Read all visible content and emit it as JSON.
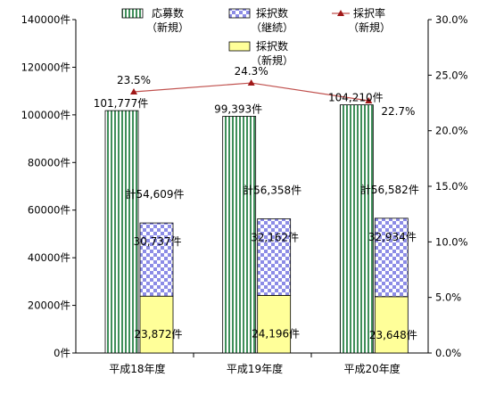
{
  "chart_data": {
    "type": "bar",
    "categories": [
      "平成18年度",
      "平成19年度",
      "平成20年度"
    ],
    "left_axis": {
      "ylim": [
        0,
        140000
      ],
      "ticks": [
        0,
        20000,
        40000,
        60000,
        80000,
        100000,
        120000,
        140000
      ],
      "tick_labels": [
        "0件",
        "20000件",
        "40000件",
        "60000件",
        "80000件",
        "100000件",
        "120000件",
        "140000件"
      ]
    },
    "right_axis": {
      "ylim": [
        0,
        30
      ],
      "ticks": [
        0,
        5,
        10,
        15,
        20,
        25,
        30
      ],
      "tick_labels": [
        "0.0%",
        "5.0%",
        "10.0%",
        "15.0%",
        "20.0%",
        "25.0%",
        "30.0%"
      ]
    },
    "series": [
      {
        "name": [
          "応募数",
          "（新規）"
        ],
        "kind": "bar",
        "pattern": "vertical-stripes",
        "color": "#3f8f5a",
        "values": [
          101777,
          99393,
          104210
        ],
        "labels": [
          "101,777件",
          "99,393件",
          "104,210件"
        ]
      },
      {
        "name": [
          "採択数",
          "（継続）"
        ],
        "kind": "stacked-bar-top",
        "pattern": "checker",
        "color": "#8c8ce6",
        "values": [
          30737,
          32162,
          32934
        ],
        "labels": [
          "30,737件",
          "32,162件",
          "32,934件"
        ]
      },
      {
        "name": [
          "採択数",
          "（新規）"
        ],
        "kind": "stacked-bar-bottom",
        "color": "#ffff99",
        "values": [
          23872,
          24196,
          23648
        ],
        "labels": [
          "23,872件",
          "24,196件",
          "23,648件"
        ]
      },
      {
        "name": [
          "採択率",
          "（新規）"
        ],
        "kind": "line",
        "axis": "right",
        "color": "#c0504d",
        "values": [
          23.5,
          24.3,
          22.7
        ],
        "labels": [
          "23.5%",
          "24.3%",
          "22.7%"
        ]
      }
    ],
    "totals": {
      "values": [
        54609,
        56358,
        56582
      ],
      "labels": [
        "計54,609件",
        "計56,358件",
        "計56,582件"
      ]
    },
    "legend_placement": "top",
    "grid": false
  }
}
